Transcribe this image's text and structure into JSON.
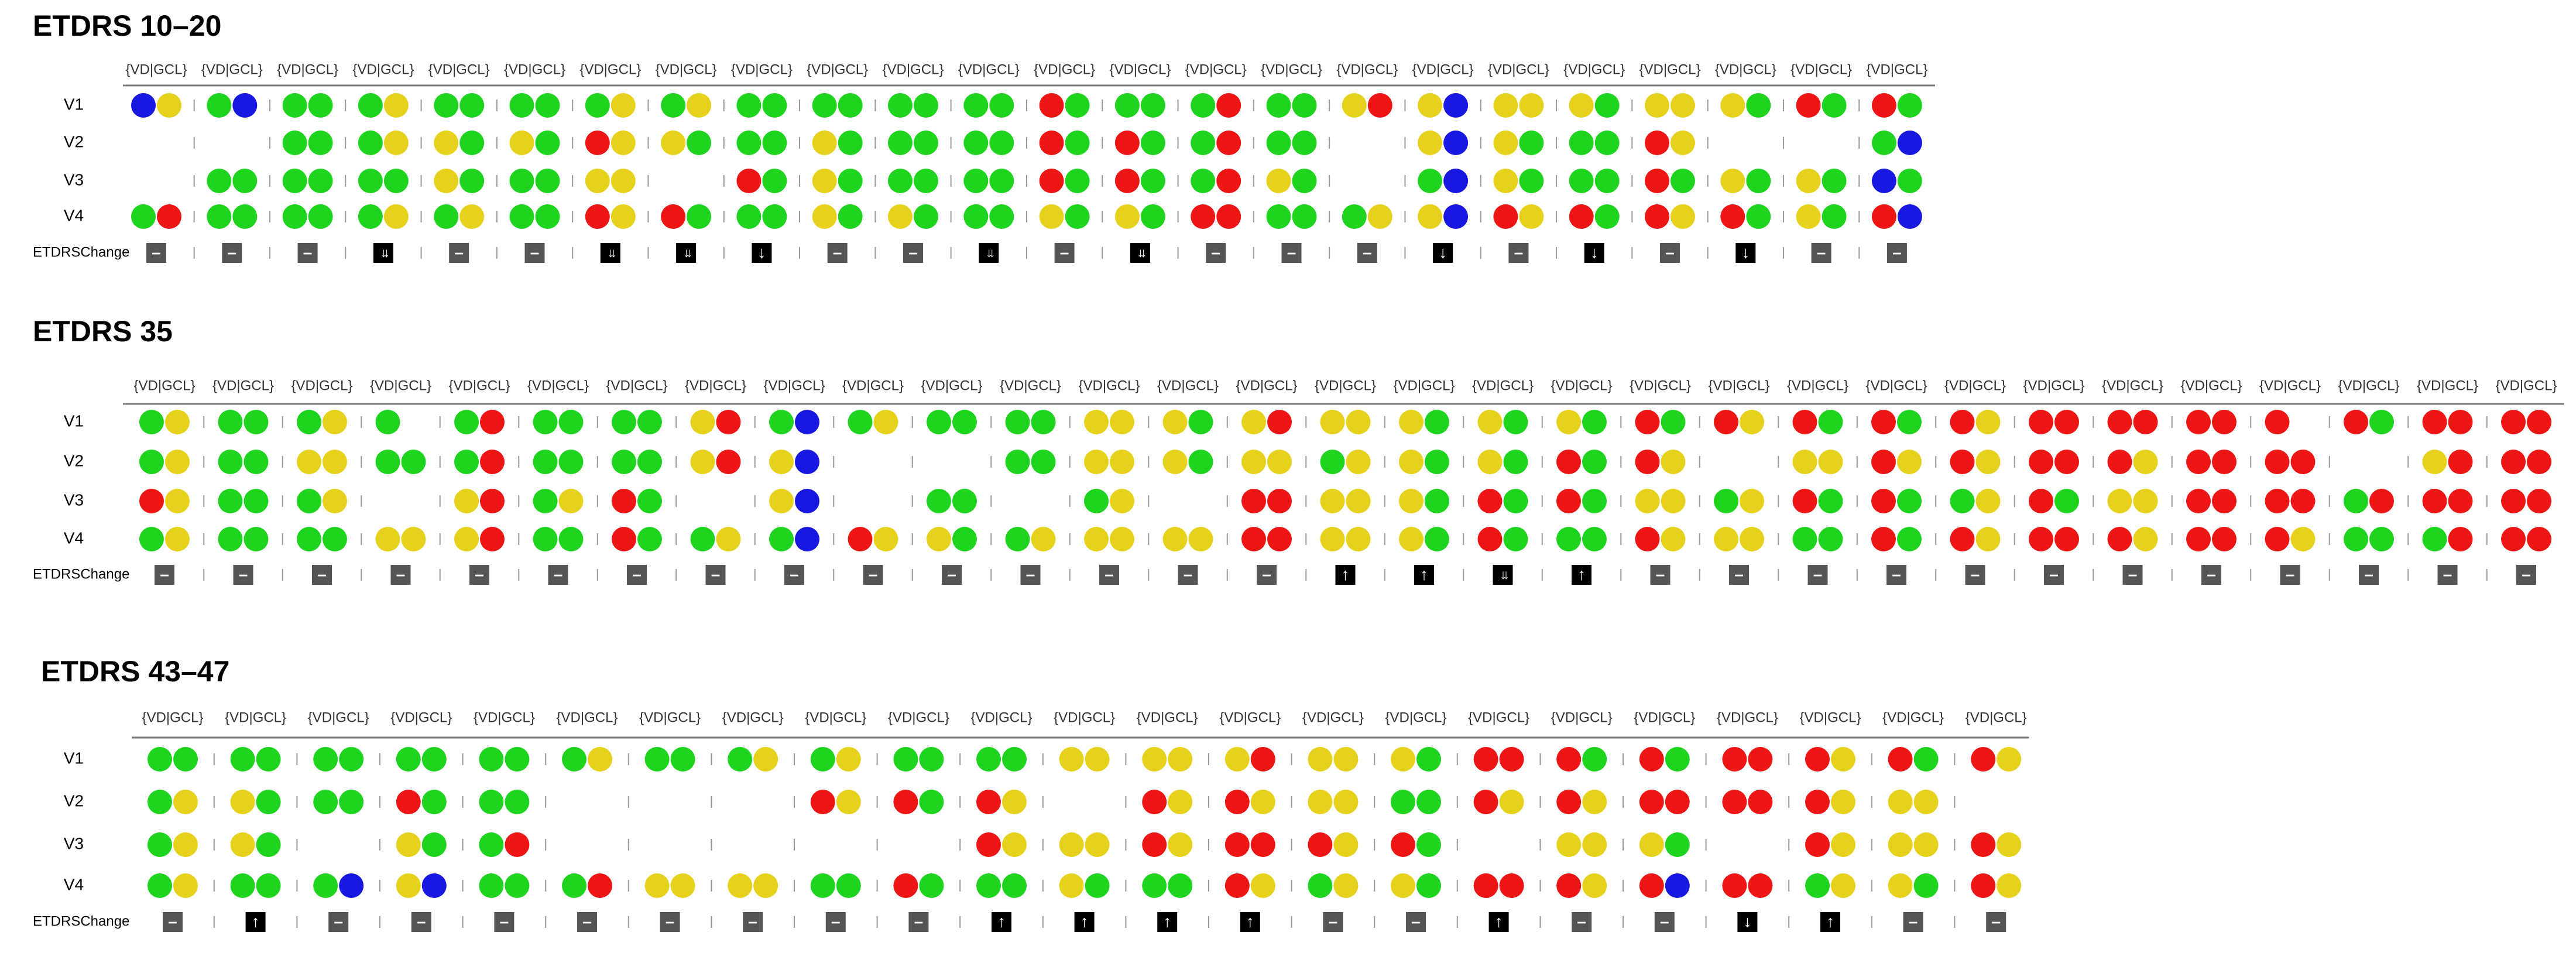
{
  "colors": {
    "g": "#1ed41e",
    "y": "#e6d21c",
    "r": "#ee1515",
    "b": "#1818e0"
  },
  "panels": [
    {
      "title": "ETDRS 10–20",
      "column_header": "{VD|GCL}",
      "change_label": "ETDRSChange",
      "rows": [
        {
          "label": "V1",
          "cells": [
            "by",
            "gb",
            "gg",
            "gy",
            "gg",
            "gg",
            "gy",
            "gy",
            "gg",
            "gg",
            "gg",
            "gg",
            "rg",
            "gg",
            "gr",
            "gg",
            "yr",
            "yb",
            "yy",
            "yg",
            "yy",
            "yg",
            "rg",
            "rg"
          ]
        },
        {
          "label": "V2",
          "cells": [
            null,
            null,
            "gg",
            "gy",
            "yg",
            "yg",
            "ry",
            "yg",
            "gg",
            "yg",
            "gg",
            "gg",
            "rg",
            "rg",
            "gr",
            "gg",
            null,
            "yb",
            "yg",
            "gg",
            "ry",
            null,
            null,
            "gb"
          ]
        },
        {
          "label": "V3",
          "cells": [
            null,
            "gg",
            "gg",
            "gg",
            "yg",
            "gg",
            "yy",
            null,
            "rg",
            "yg",
            "gg",
            "gg",
            "rg",
            "rg",
            "gr",
            "yg",
            null,
            "gb",
            "yg",
            "gg",
            "rg",
            "yg",
            "yg",
            "bg"
          ]
        },
        {
          "label": "V4",
          "cells": [
            "gr",
            "gg",
            "gg",
            "gy",
            "gy",
            "gg",
            "ry",
            "rg",
            "gg",
            "yg",
            "yg",
            "gg",
            "yg",
            "yg",
            "rr",
            "gg",
            "gy",
            "yb",
            "ry",
            "rg",
            "ry",
            "rg",
            "yg",
            "rb"
          ]
        }
      ],
      "changes": [
        "–",
        "–",
        "–",
        "↓↓",
        "–",
        "–",
        "↓↓",
        "↓↓",
        "↓",
        "–",
        "–",
        "↓↓",
        "–",
        "↓↓",
        "–",
        "–",
        "–",
        "↓",
        "–",
        "↓",
        "–",
        "↓",
        "–",
        "–"
      ]
    },
    {
      "title": "ETDRS 35",
      "column_header": "{VD|GCL}",
      "change_label": "ETDRSChange",
      "rows": [
        {
          "label": "V1",
          "cells": [
            "gy",
            "gg",
            "gy",
            "g",
            "gr",
            "gg",
            "gg",
            "yr",
            "gb",
            "gy",
            "gg",
            "gg",
            "yy",
            "yg",
            "yr",
            "yy",
            "yg",
            "yg",
            "yg",
            "rg",
            "ry",
            "rg",
            "rg",
            "ry",
            "rr",
            "rr",
            "rr",
            "r",
            "rg",
            "rr",
            "rr"
          ]
        },
        {
          "label": "V2",
          "cells": [
            "gy",
            "gg",
            "yy",
            "gg",
            "gr",
            "gg",
            "gg",
            "yr",
            "yb",
            null,
            null,
            "gg",
            "yy",
            "yg",
            "yy",
            "gy",
            "yg",
            "yg",
            "rg",
            "ry",
            null,
            "yy",
            "ry",
            "ry",
            "rr",
            "ry",
            "rr",
            "rr",
            null,
            "yr",
            "rr"
          ]
        },
        {
          "label": "V3",
          "cells": [
            "ry",
            "gg",
            "gy",
            null,
            "yr",
            "gy",
            "rg",
            null,
            "yb",
            null,
            "gg",
            null,
            "gy",
            null,
            "rr",
            "yy",
            "yg",
            "rg",
            "rg",
            "yy",
            "gy",
            "rg",
            "rg",
            "gy",
            "rg",
            "yy",
            "rr",
            "rr",
            "gr",
            "rr",
            "rr"
          ]
        },
        {
          "label": "V4",
          "cells": [
            "gy",
            "gg",
            "gg",
            "yy",
            "yr",
            "gg",
            "rg",
            "gy",
            "gb",
            "ry",
            "yg",
            "gy",
            "yy",
            "yy",
            "rr",
            "yy",
            "yg",
            "rg",
            "gg",
            "ry",
            "yy",
            "gg",
            "rg",
            "ry",
            "rr",
            "ry",
            "rr",
            "ry",
            "gg",
            "gr",
            "rr"
          ]
        }
      ],
      "changes": [
        "–",
        "–",
        "–",
        "–",
        "–",
        "–",
        "–",
        "–",
        "–",
        "–",
        "–",
        "–",
        "–",
        "–",
        "–",
        "↑",
        "↑",
        "↓↓",
        "↑",
        "–",
        "–",
        "–",
        "–",
        "–",
        "–",
        "–",
        "–",
        "–",
        "–",
        "–",
        "–"
      ]
    },
    {
      "title": "ETDRS 43–47",
      "column_header": "{VD|GCL}",
      "change_label": "ETDRSChange",
      "rows": [
        {
          "label": "V1",
          "cells": [
            "gg",
            "gg",
            "gg",
            "gg",
            "gg",
            "gy",
            "gg",
            "gy",
            "gy",
            "gg",
            "gg",
            "yy",
            "yy",
            "yr",
            "yy",
            "yg",
            "rr",
            "rg",
            "rg",
            "rr",
            "ry",
            "rg",
            "ry"
          ]
        },
        {
          "label": "V2",
          "cells": [
            "gy",
            "yg",
            "gg",
            "rg",
            "gg",
            null,
            null,
            null,
            "ry",
            "rg",
            "ry",
            null,
            "ry",
            "ry",
            "yy",
            "gg",
            "ry",
            "ry",
            "rr",
            "rr",
            "ry",
            "yy",
            null
          ]
        },
        {
          "label": "V3",
          "cells": [
            "gy",
            "yg",
            null,
            "yg",
            "gr",
            null,
            null,
            null,
            null,
            null,
            "ry",
            "yy",
            "ry",
            "rr",
            "ry",
            "rg",
            null,
            "yy",
            "yg",
            null,
            "ry",
            "yy",
            "ry"
          ]
        },
        {
          "label": "V4",
          "cells": [
            "gy",
            "gg",
            "gb",
            "yb",
            "gg",
            "gr",
            "yy",
            "yy",
            "gg",
            "rg",
            "gg",
            "yg",
            "gg",
            "ry",
            "gy",
            "yg",
            "rr",
            "ry",
            "rb",
            "rr",
            "gy",
            "yg",
            "ry"
          ]
        }
      ],
      "changes": [
        "–",
        "↑",
        "–",
        "–",
        "–",
        "–",
        "–",
        "–",
        "–",
        "–",
        "↑",
        "↑",
        "↑",
        "↑",
        "–",
        "–",
        "↑",
        "–",
        "–",
        "↓",
        "↑",
        "–",
        "–"
      ]
    }
  ]
}
